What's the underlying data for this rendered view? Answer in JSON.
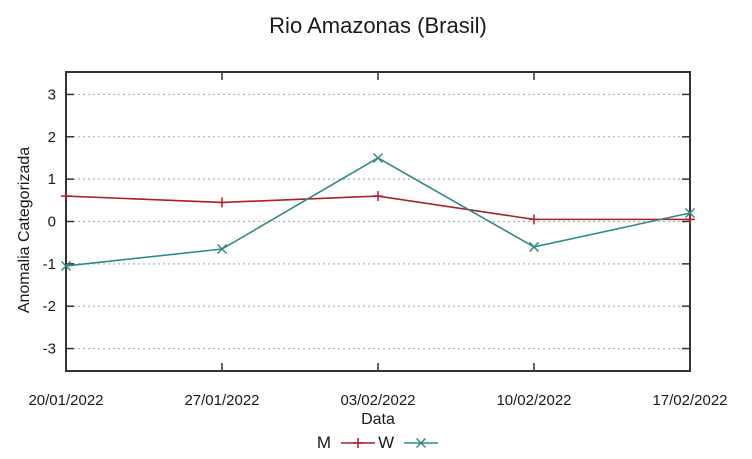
{
  "title": "Rio Amazonas (Brasil)",
  "chart_data": {
    "type": "line",
    "title": "Rio Amazonas (Brasil)",
    "xlabel": "Data",
    "ylabel": "Anomalia Categorizada",
    "categories": [
      "20/01/2022",
      "27/01/2022",
      "03/02/2022",
      "10/02/2022",
      "17/02/2022"
    ],
    "series": [
      {
        "name": "M",
        "color": "#ad2026",
        "marker": "plus",
        "values": [
          0.6,
          0.45,
          0.6,
          0.05,
          0.05
        ]
      },
      {
        "name": "W",
        "color": "#2e8b8a",
        "marker": "cross",
        "values": [
          -1.05,
          -0.65,
          1.5,
          -0.6,
          0.2
        ]
      }
    ],
    "yticks": [
      -3,
      -2,
      -1,
      0,
      1,
      2,
      3
    ],
    "ylim": [
      -3.53,
      3.53
    ],
    "grid": "horizontal-dotted",
    "legend_position": "bottom-center",
    "colors": {
      "axis": "#333333",
      "grid": "#b3b3b3",
      "text": "#1a1a1a",
      "background": "#ffffff"
    }
  }
}
